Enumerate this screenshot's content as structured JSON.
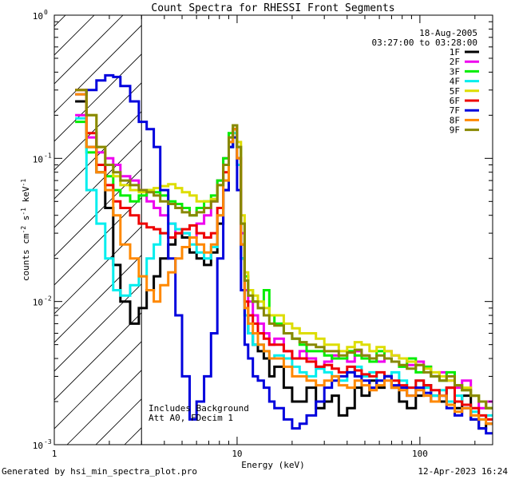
{
  "chart_data": {
    "type": "line",
    "title": "Count Spectra for RHESSI Front Segments",
    "xlabel": "Energy (keV)",
    "ylabel_main": "counts cm",
    "ylabel_exp1": "-2",
    "ylabel_mid": " s",
    "ylabel_exp2": "-1",
    "ylabel_end": " keV",
    "ylabel_exp3": "-1",
    "xscale": "log",
    "yscale": "log",
    "xlim": [
      1,
      250
    ],
    "ylim": [
      0.001,
      1
    ],
    "x_ticks": [
      {
        "value": 1,
        "label": "1"
      },
      {
        "value": 10,
        "label": "10"
      },
      {
        "value": 100,
        "label": "100"
      }
    ],
    "y_ticks": [
      {
        "value": 1,
        "base": "10",
        "exp": "0"
      },
      {
        "value": 0.1,
        "base": "10",
        "exp": "-1"
      },
      {
        "value": 0.01,
        "base": "10",
        "exp": "-2"
      },
      {
        "value": 0.001,
        "base": "10",
        "exp": "-3"
      }
    ],
    "date": "18-Aug-2005",
    "time_range": "03:27:00 to 03:28:00",
    "excluded_region_max_kev": 3,
    "annotation_line1": "Includes Background",
    "annotation_line2": "Att A0, FDecim 1",
    "footer_left": "Generated by hsi_min_spectra_plot.pro",
    "footer_right": "12-Apr-2023 16:24",
    "energy_edges_keV": [
      1.3,
      1.5,
      1.7,
      1.9,
      2.1,
      2.3,
      2.6,
      2.9,
      3.2,
      3.5,
      3.8,
      4.2,
      4.6,
      5.0,
      5.5,
      6.0,
      6.6,
      7.2,
      7.8,
      8.4,
      9.0,
      9.5,
      10.0,
      10.5,
      11.0,
      11.5,
      12.2,
      13,
      14,
      15,
      16,
      18,
      20,
      22,
      24,
      27,
      30,
      33,
      36,
      40,
      44,
      48,
      53,
      58,
      64,
      70,
      77,
      85,
      95,
      105,
      115,
      128,
      140,
      155,
      170,
      190,
      210,
      230,
      250
    ],
    "series": [
      {
        "name": "1F",
        "color": "#000000",
        "values": [
          0.25,
          0.12,
          0.08,
          0.045,
          0.018,
          0.01,
          0.007,
          0.009,
          0.012,
          0.015,
          0.02,
          0.025,
          0.03,
          0.028,
          0.022,
          0.02,
          0.018,
          0.022,
          0.035,
          0.06,
          0.12,
          0.16,
          0.09,
          0.02,
          0.008,
          0.006,
          0.005,
          0.0045,
          0.004,
          0.003,
          0.0035,
          0.0025,
          0.002,
          0.002,
          0.0025,
          0.0018,
          0.002,
          0.0022,
          0.0016,
          0.0018,
          0.0025,
          0.0022,
          0.0028,
          0.0025,
          0.003,
          0.0025,
          0.002,
          0.0018,
          0.0022,
          0.0026,
          0.0022,
          0.002,
          0.0025,
          0.0018,
          0.0022,
          0.0015,
          0.0013,
          0.0014
        ]
      },
      {
        "name": "2F",
        "color": "#ee00ee",
        "values": [
          0.2,
          0.14,
          0.11,
          0.1,
          0.09,
          0.075,
          0.07,
          0.06,
          0.05,
          0.045,
          0.04,
          0.035,
          0.03,
          0.03,
          0.028,
          0.035,
          0.04,
          0.05,
          0.07,
          0.1,
          0.14,
          0.16,
          0.1,
          0.03,
          0.012,
          0.01,
          0.008,
          0.007,
          0.006,
          0.005,
          0.0055,
          0.0045,
          0.004,
          0.0045,
          0.004,
          0.0035,
          0.0038,
          0.0042,
          0.004,
          0.0038,
          0.0045,
          0.0042,
          0.004,
          0.0038,
          0.0045,
          0.0042,
          0.004,
          0.0036,
          0.0038,
          0.0035,
          0.003,
          0.0032,
          0.0028,
          0.0025,
          0.0028,
          0.0022,
          0.0018,
          0.002
        ]
      },
      {
        "name": "3F",
        "color": "#00ee00",
        "values": [
          0.18,
          0.11,
          0.09,
          0.075,
          0.06,
          0.055,
          0.05,
          0.055,
          0.06,
          0.058,
          0.055,
          0.05,
          0.048,
          0.045,
          0.04,
          0.045,
          0.05,
          0.055,
          0.07,
          0.1,
          0.15,
          0.17,
          0.12,
          0.035,
          0.015,
          0.012,
          0.01,
          0.009,
          0.012,
          0.008,
          0.007,
          0.006,
          0.0055,
          0.005,
          0.0045,
          0.0045,
          0.0042,
          0.004,
          0.004,
          0.0045,
          0.0042,
          0.004,
          0.0038,
          0.0045,
          0.004,
          0.0038,
          0.0035,
          0.004,
          0.0032,
          0.0035,
          0.003,
          0.0028,
          0.0032,
          0.0026,
          0.0024,
          0.0022,
          0.002,
          0.0018
        ]
      },
      {
        "name": "4F",
        "color": "#00eeee",
        "values": [
          0.19,
          0.06,
          0.035,
          0.02,
          0.012,
          0.011,
          0.013,
          0.015,
          0.02,
          0.025,
          0.03,
          0.035,
          0.032,
          0.03,
          0.025,
          0.022,
          0.02,
          0.024,
          0.04,
          0.07,
          0.12,
          0.15,
          0.09,
          0.02,
          0.008,
          0.006,
          0.005,
          0.005,
          0.0045,
          0.004,
          0.0042,
          0.004,
          0.0035,
          0.0032,
          0.003,
          0.0034,
          0.0032,
          0.003,
          0.0028,
          0.0032,
          0.0035,
          0.003,
          0.0032,
          0.0028,
          0.003,
          0.0032,
          0.0028,
          0.0025,
          0.0028,
          0.0025,
          0.0022,
          0.0024,
          0.002,
          0.0022,
          0.0019,
          0.0017,
          0.0015,
          0.0016
        ]
      },
      {
        "name": "5F",
        "color": "#dddd00",
        "values": [
          0.3,
          0.2,
          0.12,
          0.09,
          0.075,
          0.065,
          0.06,
          0.058,
          0.06,
          0.062,
          0.064,
          0.066,
          0.062,
          0.058,
          0.055,
          0.05,
          0.05,
          0.052,
          0.065,
          0.09,
          0.14,
          0.17,
          0.13,
          0.04,
          0.016,
          0.012,
          0.011,
          0.01,
          0.009,
          0.008,
          0.008,
          0.007,
          0.0065,
          0.006,
          0.006,
          0.0055,
          0.005,
          0.005,
          0.0045,
          0.0048,
          0.0052,
          0.005,
          0.0045,
          0.0048,
          0.0045,
          0.0042,
          0.004,
          0.0038,
          0.0036,
          0.0034,
          0.0032,
          0.003,
          0.0028,
          0.0026,
          0.0025,
          0.0022,
          0.002,
          0.0018
        ]
      },
      {
        "name": "6F",
        "color": "#ee0000",
        "values": [
          0.3,
          0.15,
          0.09,
          0.065,
          0.05,
          0.045,
          0.04,
          0.035,
          0.033,
          0.032,
          0.03,
          0.028,
          0.03,
          0.032,
          0.034,
          0.03,
          0.028,
          0.03,
          0.045,
          0.08,
          0.13,
          0.16,
          0.1,
          0.025,
          0.01,
          0.008,
          0.007,
          0.006,
          0.0055,
          0.005,
          0.005,
          0.0045,
          0.004,
          0.004,
          0.0038,
          0.0035,
          0.0036,
          0.0034,
          0.0032,
          0.0035,
          0.0033,
          0.0031,
          0.003,
          0.0032,
          0.003,
          0.0028,
          0.0026,
          0.0025,
          0.0028,
          0.0026,
          0.0024,
          0.0022,
          0.0025,
          0.002,
          0.0019,
          0.0018,
          0.0016,
          0.0015
        ]
      },
      {
        "name": "7F",
        "color": "#0000dd",
        "values": [
          0.28,
          0.3,
          0.35,
          0.38,
          0.37,
          0.32,
          0.25,
          0.18,
          0.16,
          0.12,
          0.06,
          0.02,
          0.008,
          0.003,
          0.0015,
          0.002,
          0.003,
          0.006,
          0.02,
          0.06,
          0.12,
          0.14,
          0.06,
          0.012,
          0.005,
          0.004,
          0.003,
          0.0028,
          0.0025,
          0.002,
          0.0018,
          0.0015,
          0.0013,
          0.0014,
          0.0016,
          0.002,
          0.0025,
          0.0028,
          0.003,
          0.0032,
          0.003,
          0.0028,
          0.0025,
          0.0028,
          0.003,
          0.0026,
          0.0025,
          0.0022,
          0.0025,
          0.0023,
          0.002,
          0.0022,
          0.0018,
          0.0016,
          0.0018,
          0.0015,
          0.0013,
          0.0012
        ]
      },
      {
        "name": "8F",
        "color": "#ff8800",
        "values": [
          0.28,
          0.12,
          0.08,
          0.06,
          0.04,
          0.025,
          0.02,
          0.015,
          0.012,
          0.01,
          0.013,
          0.016,
          0.02,
          0.024,
          0.028,
          0.025,
          0.022,
          0.025,
          0.04,
          0.07,
          0.13,
          0.16,
          0.1,
          0.025,
          0.009,
          0.007,
          0.006,
          0.005,
          0.0045,
          0.004,
          0.004,
          0.0035,
          0.003,
          0.003,
          0.0028,
          0.0026,
          0.0028,
          0.003,
          0.0026,
          0.0025,
          0.0028,
          0.0026,
          0.0024,
          0.0026,
          0.0028,
          0.0025,
          0.0024,
          0.0022,
          0.0024,
          0.0022,
          0.002,
          0.0022,
          0.0019,
          0.0017,
          0.0018,
          0.0016,
          0.0015,
          0.0014
        ]
      },
      {
        "name": "9F",
        "color": "#888800",
        "values": [
          0.3,
          0.2,
          0.12,
          0.09,
          0.08,
          0.07,
          0.065,
          0.06,
          0.058,
          0.055,
          0.05,
          0.048,
          0.045,
          0.042,
          0.04,
          0.042,
          0.045,
          0.05,
          0.065,
          0.09,
          0.14,
          0.17,
          0.12,
          0.035,
          0.014,
          0.011,
          0.01,
          0.009,
          0.008,
          0.007,
          0.0068,
          0.006,
          0.0055,
          0.0052,
          0.005,
          0.0048,
          0.0045,
          0.0045,
          0.0042,
          0.0044,
          0.0046,
          0.0042,
          0.004,
          0.0042,
          0.004,
          0.0038,
          0.0036,
          0.0034,
          0.0036,
          0.0032,
          0.003,
          0.0028,
          0.003,
          0.0026,
          0.0024,
          0.0022,
          0.002,
          0.0018
        ]
      }
    ]
  }
}
